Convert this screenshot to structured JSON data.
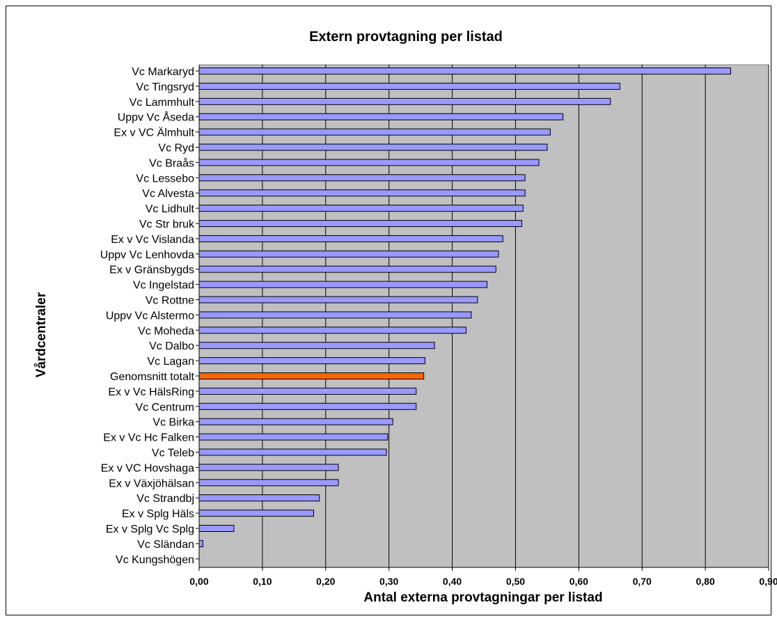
{
  "chart_data": {
    "type": "bar",
    "orientation": "horizontal",
    "title": "Extern provtagning per listad",
    "xlabel": "Antal externa provtagningar per listad",
    "ylabel": "Vårdcentraler",
    "xlim": [
      0,
      0.9
    ],
    "ticks": [
      "0,00",
      "0,10",
      "0,20",
      "0,30",
      "0,40",
      "0,50",
      "0,60",
      "0,70",
      "0,80",
      "0,90"
    ],
    "grid": true,
    "legend": "none",
    "categories": [
      "Vc Markaryd",
      "Vc Tingsryd",
      "Vc Lammhult",
      "Uppv Vc Åseda",
      "Ex v VC Älmhult",
      "Vc Ryd",
      "Vc Braås",
      "Vc Lessebo",
      "Vc Alvesta",
      "Vc Lidhult",
      "Vc Str bruk",
      "Ex v Vc Vislanda",
      "Uppv Vc Lenhovda",
      "Ex v Gränsbygds",
      "Vc Ingelstad",
      "Vc Rottne",
      "Uppv Vc Alstermo",
      "Vc Moheda",
      "Vc Dalbo",
      "Vc Lagan",
      "Genomsnitt totalt",
      "Ex v Vc HälsRing",
      "Vc Centrum",
      "Vc Birka",
      "Ex v Vc Hc Falken",
      "Vc Teleb",
      "Ex v VC Hovshaga",
      "Ex v Växjöhälsan",
      "Vc Strandbj",
      "Ex v Splg Häls",
      "Ex v Splg Vc Splg",
      "Vc Sländan",
      "Vc Kungshögen"
    ],
    "values": [
      0.84,
      0.665,
      0.65,
      0.575,
      0.555,
      0.55,
      0.537,
      0.515,
      0.515,
      0.512,
      0.51,
      0.48,
      0.473,
      0.469,
      0.455,
      0.44,
      0.43,
      0.422,
      0.372,
      0.357,
      0.355,
      0.343,
      0.343,
      0.306,
      0.298,
      0.296,
      0.22,
      0.22,
      0.19,
      0.181,
      0.055,
      0.006,
      0
    ],
    "highlight": "Genomsnitt totalt",
    "colors": {
      "bar": "#9999ff",
      "highlight_bar": "#ff6600",
      "plot_bg": "#c0c0c0",
      "grid": "#000000"
    }
  }
}
